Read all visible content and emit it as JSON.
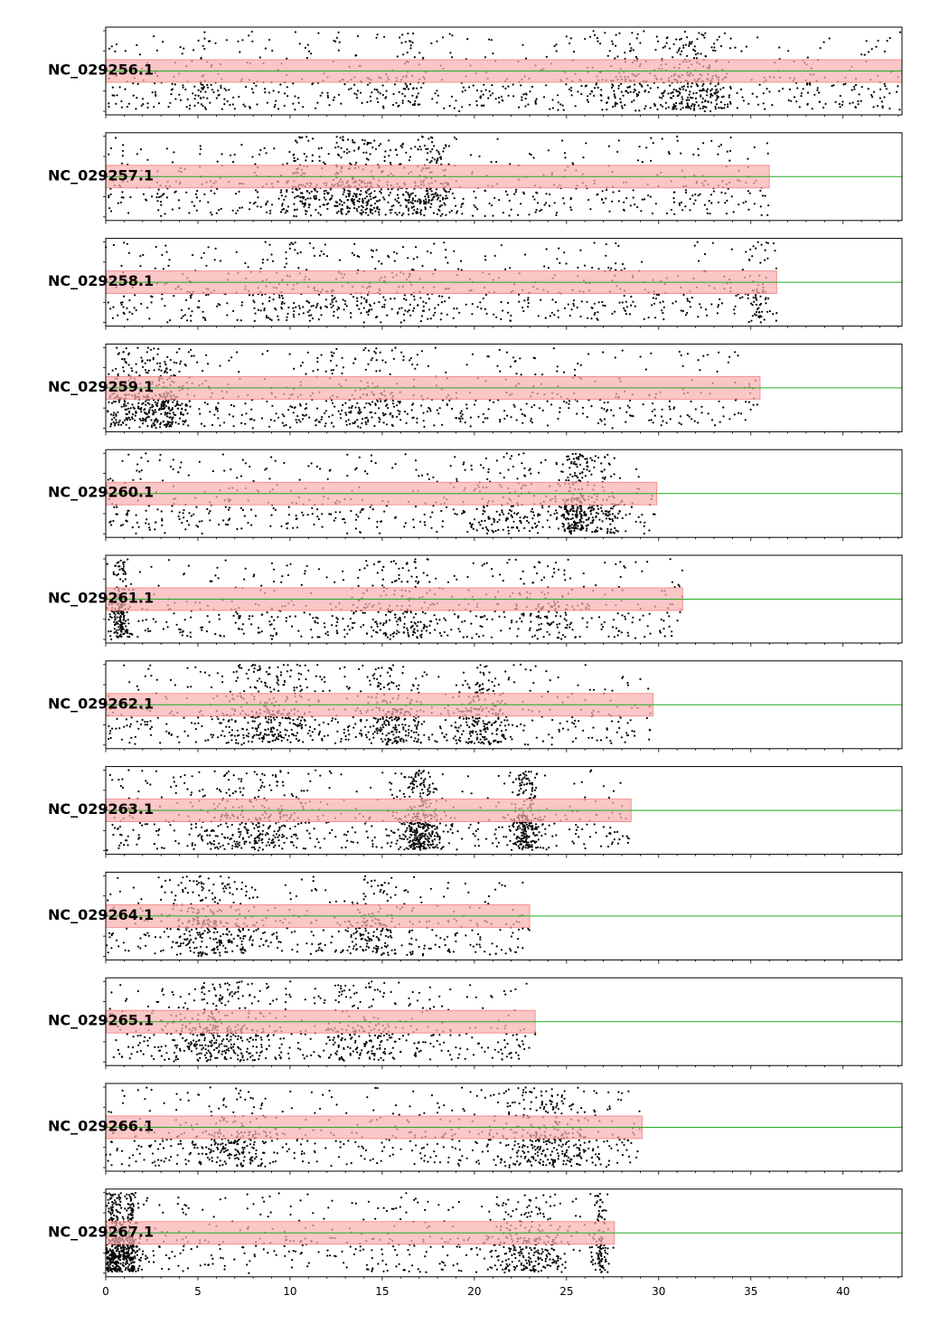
{
  "chart_data": {
    "type": "scatter",
    "title": "",
    "xlabel": "",
    "ylabel": "",
    "xlim": [
      0,
      43.2
    ],
    "x_ticks": [
      "0",
      "5",
      "10",
      "15",
      "20",
      "25",
      "30",
      "35",
      "40"
    ],
    "x_minor_tick_step": 1,
    "shared_x_axis": true,
    "grid": false,
    "legend": "none",
    "colors": {
      "points": "#000000",
      "length_band": "#f8b0b0",
      "length_band_edge": "#f08080",
      "center_line": "#22aa22",
      "frame": "#000000"
    },
    "tracks": [
      {
        "label": "NC_029256.1",
        "length": 43.2,
        "clusters": [
          [
            31.5,
            1.2,
            0.14
          ],
          [
            33.0,
            0.9,
            0.09
          ],
          [
            28.5,
            2.5,
            0.12
          ],
          [
            16.5,
            1.5,
            0.04
          ],
          [
            5.5,
            1.0,
            0.03
          ]
        ]
      },
      {
        "label": "NC_029257.1",
        "length": 36.0,
        "clusters": [
          [
            13.5,
            2.5,
            0.25
          ],
          [
            17.5,
            1.5,
            0.18
          ],
          [
            10.5,
            1.0,
            0.1
          ]
        ]
      },
      {
        "label": "NC_029258.1",
        "length": 36.4,
        "clusters": [
          [
            15.0,
            4.0,
            0.12
          ],
          [
            35.5,
            0.5,
            0.04
          ],
          [
            10.0,
            2.0,
            0.05
          ]
        ]
      },
      {
        "label": "NC_029259.1",
        "length": 35.5,
        "clusters": [
          [
            3.0,
            1.5,
            0.3
          ],
          [
            1.0,
            1.0,
            0.1
          ],
          [
            14.0,
            3.0,
            0.1
          ]
        ]
      },
      {
        "label": "NC_029260.1",
        "length": 29.9,
        "clusters": [
          [
            25.5,
            1.0,
            0.2
          ],
          [
            27.0,
            1.0,
            0.12
          ],
          [
            22.0,
            3.0,
            0.1
          ]
        ]
      },
      {
        "label": "NC_029261.1",
        "length": 31.3,
        "clusters": [
          [
            0.8,
            0.5,
            0.15
          ],
          [
            16.0,
            2.5,
            0.15
          ],
          [
            24.0,
            2.0,
            0.1
          ]
        ]
      },
      {
        "label": "NC_029262.1",
        "length": 29.7,
        "clusters": [
          [
            9.0,
            3.0,
            0.25
          ],
          [
            15.5,
            2.0,
            0.2
          ],
          [
            20.5,
            1.5,
            0.2
          ]
        ]
      },
      {
        "label": "NC_029263.1",
        "length": 28.5,
        "clusters": [
          [
            17.0,
            1.2,
            0.3
          ],
          [
            22.8,
            0.8,
            0.25
          ],
          [
            8.0,
            3.0,
            0.25
          ]
        ]
      },
      {
        "label": "NC_029264.1",
        "length": 23.0,
        "clusters": [
          [
            6.0,
            3.0,
            0.25
          ],
          [
            14.5,
            2.0,
            0.12
          ]
        ]
      },
      {
        "label": "NC_029265.1",
        "length": 23.3,
        "clusters": [
          [
            6.0,
            3.0,
            0.3
          ],
          [
            14.0,
            3.0,
            0.15
          ]
        ]
      },
      {
        "label": "NC_029266.1",
        "length": 29.1,
        "clusters": [
          [
            24.0,
            3.0,
            0.3
          ],
          [
            7.0,
            2.0,
            0.15
          ]
        ]
      },
      {
        "label": "NC_029267.1",
        "length": 27.6,
        "clusters": [
          [
            0.5,
            0.8,
            0.4
          ],
          [
            1.4,
            0.3,
            0.15
          ],
          [
            23.0,
            2.0,
            0.2
          ],
          [
            26.8,
            0.4,
            0.08
          ]
        ]
      }
    ]
  }
}
